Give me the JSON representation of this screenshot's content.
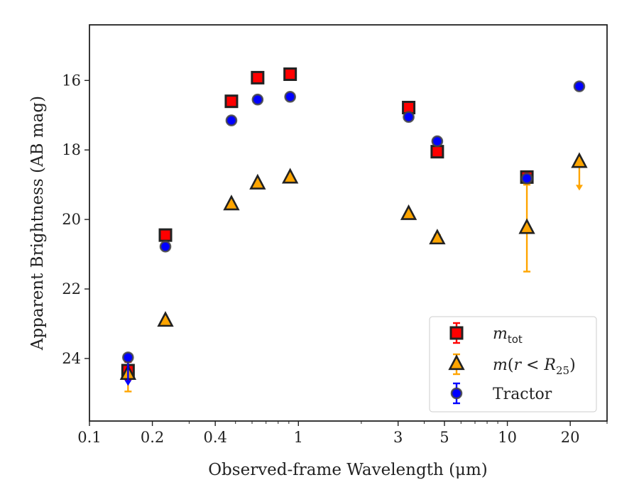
{
  "chart_data": {
    "type": "scatter",
    "title": "",
    "xlabel": "Observed-frame Wavelength (μm)",
    "ylabel": "Apparent Brightness (AB mag)",
    "xscale": "log",
    "xlim": [
      0.1,
      30
    ],
    "ylim": [
      25.8,
      14.4
    ],
    "y_inverted": true,
    "x_major_ticks": [
      0.1,
      0.2,
      0.4,
      1,
      3,
      5,
      10,
      20
    ],
    "x_tick_labels": [
      "0.1",
      "0.2",
      "0.4",
      "1",
      "3",
      "5",
      "10",
      "20"
    ],
    "y_ticks": [
      16,
      18,
      20,
      22,
      24
    ],
    "y_tick_labels": [
      "16",
      "18",
      "20",
      "22",
      "24"
    ],
    "grid": false,
    "legend_position": "bottom-right",
    "series": [
      {
        "name": "m_tot",
        "marker": "square",
        "color": "#ff0000",
        "edgecolor": "#222222",
        "errcolor": "#ff0000",
        "points": [
          {
            "x": 0.153,
            "y": 24.35,
            "err": 0.25
          },
          {
            "x": 0.231,
            "y": 20.45,
            "err": 0.0
          },
          {
            "x": 0.478,
            "y": 16.6,
            "err": 0.0
          },
          {
            "x": 0.638,
            "y": 15.92,
            "err": 0.0
          },
          {
            "x": 0.913,
            "y": 15.82,
            "err": 0.0
          },
          {
            "x": 3.37,
            "y": 16.78,
            "err": 0.0
          },
          {
            "x": 4.62,
            "y": 18.05,
            "err": 0.0
          },
          {
            "x": 12.4,
            "y": 18.78,
            "err": 0.1
          }
        ]
      },
      {
        "name": "m(r < R25)",
        "marker": "triangle",
        "color": "#ffa500",
        "edgecolor": "#222222",
        "errcolor": "#ffa500",
        "points": [
          {
            "x": 0.153,
            "y": 24.45,
            "err": 0.5
          },
          {
            "x": 0.231,
            "y": 22.92,
            "err": 0.0
          },
          {
            "x": 0.478,
            "y": 19.57,
            "err": 0.0
          },
          {
            "x": 0.638,
            "y": 18.97,
            "err": 0.0
          },
          {
            "x": 0.913,
            "y": 18.8,
            "err": 0.0
          },
          {
            "x": 3.37,
            "y": 19.85,
            "err": 0.0
          },
          {
            "x": 4.62,
            "y": 20.55,
            "err": 0.1
          },
          {
            "x": 12.4,
            "y": 20.25,
            "err": 1.25
          },
          {
            "x": 22.1,
            "y": 18.35,
            "err": 0.0,
            "upper_limit": true
          }
        ]
      },
      {
        "name": "Tractor",
        "marker": "circle",
        "color": "#0000ff",
        "edgecolor": "#444444",
        "errcolor": "#0000ff",
        "points": [
          {
            "x": 0.153,
            "y": 23.97,
            "err": 0.0,
            "upper_limit": true
          },
          {
            "x": 0.231,
            "y": 20.78,
            "err": 0.0
          },
          {
            "x": 0.478,
            "y": 17.15,
            "err": 0.0
          },
          {
            "x": 0.638,
            "y": 16.55,
            "err": 0.0
          },
          {
            "x": 0.913,
            "y": 16.47,
            "err": 0.0
          },
          {
            "x": 3.37,
            "y": 17.05,
            "err": 0.0
          },
          {
            "x": 4.62,
            "y": 17.75,
            "err": 0.0
          },
          {
            "x": 12.4,
            "y": 18.82,
            "err": 0.0
          },
          {
            "x": 22.1,
            "y": 16.17,
            "err": 0.0
          }
        ]
      }
    ]
  }
}
